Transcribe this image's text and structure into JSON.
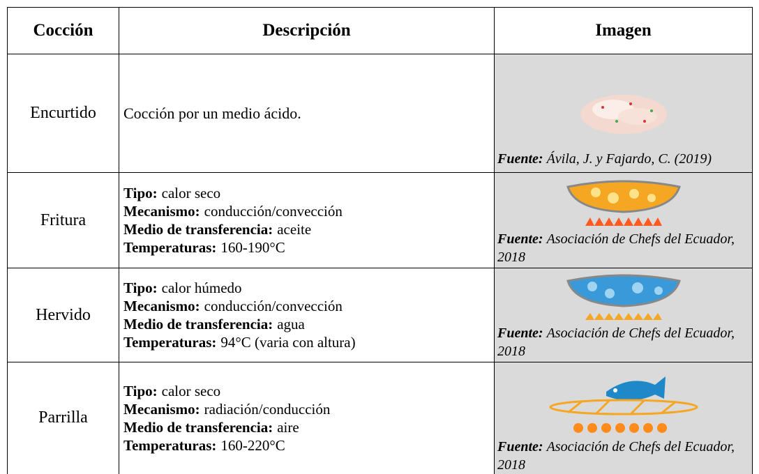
{
  "header": {
    "coccion": "Cocción",
    "descripcion": "Descripción",
    "imagen": "Imagen"
  },
  "rows": [
    {
      "coccion": "Encurtido",
      "descripcion": "Cocción por un medio ácido.",
      "fuente_label": "Fuente:",
      "fuente_text": "Ávila, J. y Fajardo, C. (2019)"
    },
    {
      "coccion": "Fritura",
      "items": [
        {
          "label": "Tipo:",
          "value": "calor seco"
        },
        {
          "label": "Mecanismo:",
          "value": "conducción/convección"
        },
        {
          "label": "Medio de transferencia:",
          "value": "aceite"
        },
        {
          "label": "Temperaturas:",
          "value": "160-190°C"
        }
      ],
      "fuente_label": "Fuente:",
      "fuente_text": "Asociación de Chefs del Ecuador, 2018"
    },
    {
      "coccion": "Hervido",
      "items": [
        {
          "label": "Tipo:",
          "value": "calor húmedo"
        },
        {
          "label": "Mecanismo:",
          "value": "conducción/convección"
        },
        {
          "label": "Medio de transferencia:",
          "value": "agua"
        },
        {
          "label": "Temperaturas:",
          "value": "94°C (varia con altura)"
        }
      ],
      "fuente_label": "Fuente:",
      "fuente_text": "Asociación de Chefs del Ecuador, 2018"
    },
    {
      "coccion": "Parrilla",
      "items": [
        {
          "label": "Tipo:",
          "value": "calor seco"
        },
        {
          "label": "Mecanismo:",
          "value": "radiación/conducción"
        },
        {
          "label": "Medio de transferencia:",
          "value": "aire"
        },
        {
          "label": "Temperaturas:",
          "value": "160-220°C"
        }
      ],
      "fuente_label": "Fuente:",
      "fuente_text": "Asociación de Chefs del Ecuador, 2018"
    }
  ]
}
